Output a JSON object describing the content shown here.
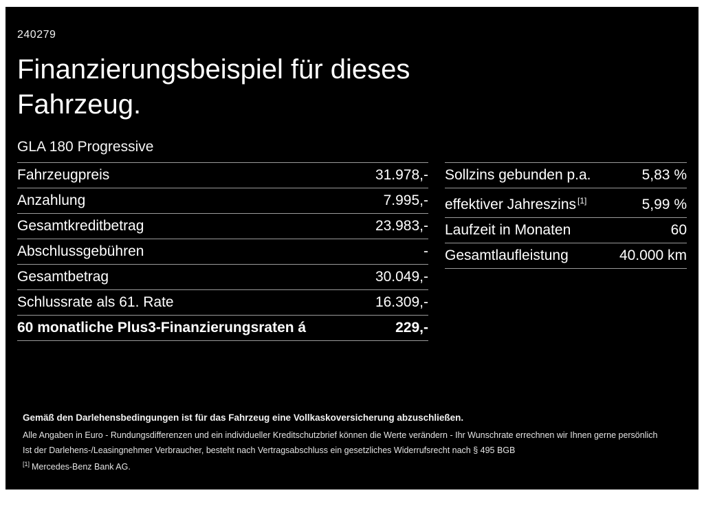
{
  "page": {
    "ref_number": "240279",
    "title": "Finanzierungsbeispiel für dieses Fahrzeug.",
    "model": "GLA 180 Progressive"
  },
  "left_table": {
    "rows": [
      {
        "label": "Fahrzeugpreis",
        "value": "31.978,-"
      },
      {
        "label": "Anzahlung",
        "value": "7.995,-"
      },
      {
        "label": "Gesamtkreditbetrag",
        "value": "23.983,-"
      },
      {
        "label": "Abschlussgebühren",
        "value": "-"
      },
      {
        "label": "Gesamtbetrag",
        "value": "30.049,-"
      },
      {
        "label": "Schlussrate als 61. Rate",
        "value": "16.309,-"
      },
      {
        "label": "60 monatliche Plus3-Finanzierungsraten á",
        "value": "229,-"
      }
    ]
  },
  "right_table": {
    "rows": [
      {
        "label": "Sollzins gebunden p.a.",
        "value": "5,83 %"
      },
      {
        "label": "effektiver Jahreszins",
        "label_sup": "[1]",
        "value": "5,99 %"
      },
      {
        "label": "Laufzeit in Monaten",
        "value": "60"
      },
      {
        "label": "Gesamtlaufleistung",
        "value": "40.000 km"
      }
    ]
  },
  "footer": {
    "line1": "Gemäß den Darlehensbedingungen ist für das Fahrzeug eine Vollkaskoversicherung abzuschließen.",
    "line2": "Alle Angaben in Euro - Rundungsdifferenzen und ein individueller Kreditschutzbrief können die Werte verändern - Ihr Wunschrate errechnen wir Ihnen gerne persönlich",
    "line3": "Ist der Darlehens-/Leasingnehmer Verbraucher, besteht nach Vertragsabschluss ein gesetzliches Widerrufsrecht nach § 495 BGB",
    "footnote_marker": "[1]",
    "footnote_text": "Mercedes-Benz Bank AG."
  }
}
